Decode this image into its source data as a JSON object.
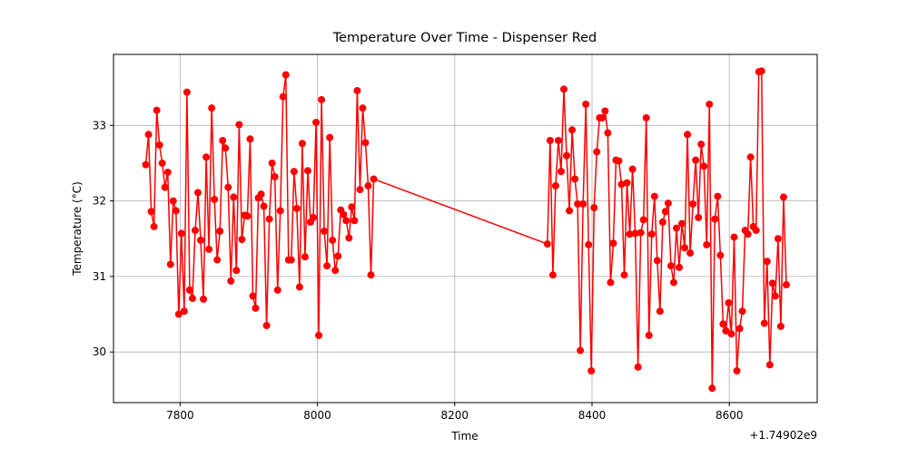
{
  "chart_data": {
    "type": "line",
    "title": "Temperature Over Time - Dispenser Red",
    "x_label": "Time",
    "y_label": "Temperature (°C)",
    "x_offset_label": "+1.74902e9",
    "color": "#ff0000",
    "grid": true,
    "xlim": [
      7703,
      8728
    ],
    "ylim": [
      29.33,
      33.94
    ],
    "xticks": [
      7800,
      8000,
      8200,
      8400,
      8600
    ],
    "yticks": [
      30,
      31,
      32,
      33
    ],
    "x": [
      7750,
      7754,
      7758,
      7762,
      7766,
      7770,
      7774,
      7778,
      7782,
      7786,
      7790,
      7794,
      7798,
      7802,
      7806,
      7810,
      7814,
      7818,
      7822,
      7826,
      7830,
      7834,
      7838,
      7842,
      7846,
      7850,
      7854,
      7858,
      7862,
      7866,
      7870,
      7874,
      7878,
      7882,
      7886,
      7890,
      7894,
      7898,
      7902,
      7906,
      7910,
      7914,
      7918,
      7922,
      7926,
      7930,
      7934,
      7938,
      7942,
      7946,
      7950,
      7954,
      7958,
      7962,
      7966,
      7970,
      7974,
      7978,
      7982,
      7986,
      7990,
      7994,
      7998,
      8002,
      8006,
      8010,
      8014,
      8018,
      8022,
      8026,
      8030,
      8034,
      8038,
      8042,
      8046,
      8050,
      8054,
      8058,
      8062,
      8066,
      8070,
      8074,
      8078,
      8082,
      8335,
      8339,
      8343,
      8347,
      8351,
      8355,
      8359,
      8363,
      8367,
      8371,
      8375,
      8379,
      8383,
      8387,
      8391,
      8395,
      8399,
      8403,
      8407,
      8411,
      8415,
      8419,
      8423,
      8427,
      8431,
      8435,
      8439,
      8443,
      8447,
      8451,
      8455,
      8459,
      8463,
      8467,
      8471,
      8475,
      8479,
      8483,
      8487,
      8491,
      8495,
      8499,
      8503,
      8507,
      8511,
      8515,
      8519,
      8523,
      8527,
      8531,
      8535,
      8539,
      8543,
      8547,
      8551,
      8555,
      8559,
      8563,
      8567,
      8571,
      8575,
      8579,
      8583,
      8587,
      8591,
      8595,
      8599,
      8603,
      8607,
      8611,
      8615,
      8619,
      8623,
      8627,
      8631,
      8635,
      8639,
      8643,
      8647,
      8651,
      8655,
      8659,
      8663,
      8667,
      8671,
      8675,
      8679,
      8683
    ],
    "values": [
      32.48,
      32.88,
      31.86,
      31.66,
      33.2,
      32.74,
      32.5,
      32.18,
      32.38,
      31.16,
      32.0,
      31.87,
      30.5,
      31.57,
      30.54,
      33.44,
      30.82,
      30.71,
      31.61,
      32.11,
      31.48,
      30.7,
      32.58,
      31.36,
      33.23,
      32.02,
      31.22,
      31.6,
      32.8,
      32.7,
      32.18,
      30.94,
      32.05,
      31.08,
      33.01,
      31.49,
      31.81,
      31.8,
      32.82,
      30.74,
      30.58,
      32.04,
      32.09,
      31.93,
      30.35,
      31.76,
      32.5,
      32.32,
      30.82,
      31.87,
      33.38,
      33.67,
      31.22,
      31.22,
      32.39,
      31.9,
      30.86,
      32.76,
      31.26,
      32.4,
      31.72,
      31.78,
      33.04,
      30.22,
      33.34,
      31.6,
      31.14,
      32.84,
      31.48,
      31.08,
      31.27,
      31.88,
      31.82,
      31.74,
      31.51,
      31.92,
      31.74,
      33.46,
      32.15,
      33.23,
      32.77,
      32.2,
      31.02,
      32.29,
      31.43,
      32.8,
      31.02,
      32.2,
      32.8,
      32.39,
      33.48,
      32.6,
      31.87,
      32.94,
      32.29,
      31.96,
      30.02,
      31.96,
      33.28,
      31.42,
      29.75,
      31.91,
      32.65,
      33.1,
      33.1,
      33.19,
      32.9,
      30.92,
      31.44,
      32.54,
      32.53,
      32.22,
      31.02,
      32.24,
      31.56,
      32.42,
      31.57,
      29.8,
      31.58,
      31.75,
      33.1,
      30.22,
      31.56,
      32.06,
      31.21,
      30.54,
      31.72,
      31.86,
      31.97,
      31.14,
      30.92,
      31.64,
      31.12,
      31.7,
      31.38,
      32.88,
      31.31,
      31.96,
      32.54,
      31.78,
      32.75,
      32.46,
      31.42,
      33.28,
      29.52,
      31.76,
      32.06,
      31.28,
      30.37,
      30.28,
      30.65,
      30.24,
      31.52,
      29.75,
      30.31,
      30.54,
      31.61,
      31.56,
      32.58,
      31.66,
      31.61,
      33.71,
      33.72,
      30.38,
      31.2,
      29.83,
      30.91,
      30.74,
      31.5,
      30.34,
      32.05,
      30.89
    ]
  }
}
